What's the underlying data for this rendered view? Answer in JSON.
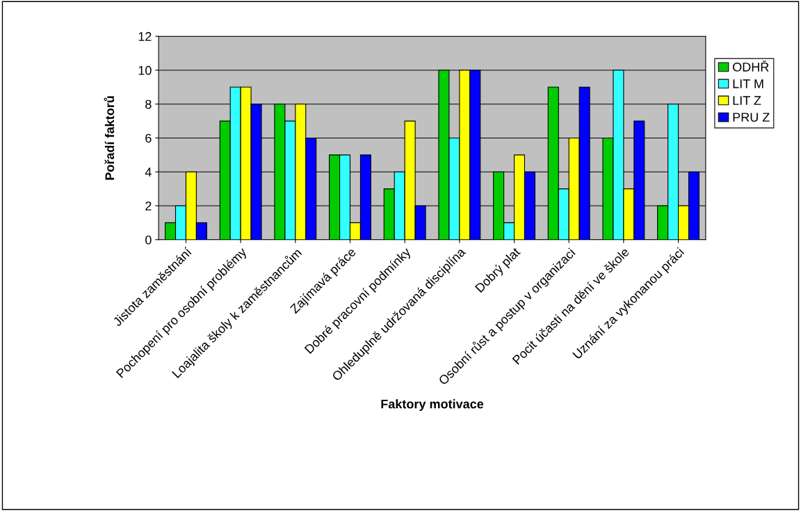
{
  "chart_data": {
    "type": "bar",
    "xlabel": "Faktory motivace",
    "ylabel": "Pořadí faktorů",
    "categories": [
      "Jistota zaměstnání",
      "Pochopení pro osobní problémy",
      "Loajalita školy k zaměstnancům",
      "Zajímavá práce",
      "Dobré pracovní podmínky",
      "Ohleduplně udržovaná disciplína",
      "Dobrý plat",
      "Osobní růst a postup v organizaci",
      "Pocit účasti na dění ve škole",
      "Uznání za vykonanou práci"
    ],
    "series": [
      {
        "name": "ODHŘ",
        "color": "#00cc00",
        "values": [
          1,
          7,
          8,
          5,
          3,
          10,
          4,
          9,
          6,
          2
        ]
      },
      {
        "name": "LIT M",
        "color": "#33ffff",
        "values": [
          2,
          9,
          7,
          5,
          4,
          6,
          1,
          3,
          10,
          8
        ]
      },
      {
        "name": "LIT Z",
        "color": "#ffff00",
        "values": [
          4,
          9,
          8,
          1,
          7,
          10,
          5,
          6,
          3,
          2
        ]
      },
      {
        "name": "PRU Z",
        "color": "#0000ff",
        "values": [
          1,
          8,
          6,
          5,
          2,
          10,
          4,
          9,
          7,
          4
        ]
      }
    ],
    "ylim": [
      0,
      12
    ],
    "yticks": [
      0,
      2,
      4,
      6,
      8,
      10,
      12
    ],
    "grid": "y",
    "legend": "right"
  }
}
